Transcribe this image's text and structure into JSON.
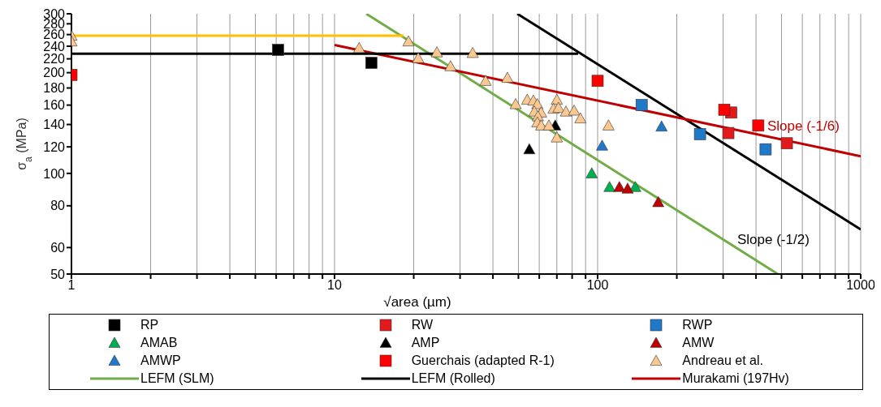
{
  "chart_data": {
    "type": "scatter",
    "xlabel": "√area (µm)",
    "ylabel": "σ$_{a}$ (MPa)",
    "log": "xy",
    "xlim": [
      1,
      1000
    ],
    "xticks": [
      1,
      {
        "value": 2,
        "label": null
      },
      {
        "value": 3,
        "label": null
      },
      {
        "value": 4,
        "label": null
      },
      {
        "value": 5,
        "label": null
      },
      {
        "value": 6,
        "label": null
      },
      {
        "value": 7,
        "label": null
      },
      {
        "value": 8,
        "label": null
      },
      {
        "value": 9,
        "label": null
      },
      10,
      {
        "value": 20,
        "label": null
      },
      {
        "value": 30,
        "label": null
      },
      {
        "value": 40,
        "label": null
      },
      {
        "value": 50,
        "label": null
      },
      {
        "value": 60,
        "label": null
      },
      {
        "value": 70,
        "label": null
      },
      {
        "value": 80,
        "label": null
      },
      {
        "value": 90,
        "label": null
      },
      100,
      {
        "value": 200,
        "label": null
      },
      {
        "value": 300,
        "label": null
      },
      {
        "value": 400,
        "label": null
      },
      {
        "value": 500,
        "label": null
      },
      {
        "value": 600,
        "label": null
      },
      {
        "value": 700,
        "label": null
      },
      {
        "value": 800,
        "label": null
      },
      {
        "value": 900,
        "label": null
      },
      1000
    ],
    "ylim": [
      50,
      300
    ],
    "yticks": [
      50,
      60,
      80,
      100,
      120,
      140,
      160,
      180,
      200,
      220,
      240,
      260,
      280,
      300
    ],
    "grid": "x",
    "legend": "bottom",
    "annotations": [
      "Slope (-1/6)",
      "Slope (-1/2)"
    ],
    "series": [
      {
        "name": "RP",
        "marker": "square",
        "color": "#000000",
        "x": [
          6.1,
          13.8
        ],
        "values": [
          234,
          214
        ]
      },
      {
        "name": "RW",
        "marker": "square",
        "color": "#e31a1c",
        "x": [
          322,
          314,
          524
        ],
        "values": [
          152,
          132,
          123
        ]
      },
      {
        "name": "RWP",
        "marker": "square",
        "color": "#1f78c8",
        "x": [
          147,
          245,
          435
        ],
        "values": [
          160,
          131,
          118
        ]
      },
      {
        "name": "AMAB",
        "marker": "triangle",
        "color": "#00b050",
        "x": [
          95,
          111,
          139
        ],
        "values": [
          100,
          91,
          91
        ]
      },
      {
        "name": "AMP",
        "marker": "triangle",
        "color": "#000000",
        "x": [
          55,
          69
        ],
        "values": [
          118,
          139
        ]
      },
      {
        "name": "AMW",
        "marker": "triangle",
        "color": "#c00000",
        "x": [
          121,
          130,
          170
        ],
        "values": [
          91,
          90,
          82
        ]
      },
      {
        "name": "AMWP",
        "marker": "triangle",
        "color": "#1f78c8",
        "x": [
          104,
          175
        ],
        "values": [
          121,
          138
        ]
      },
      {
        "name": "Guerchais  (adapted R-1)",
        "marker": "square",
        "color": "#ff0000",
        "x": [
          1,
          100,
          303,
          408
        ],
        "values": [
          197,
          189,
          155,
          139
        ]
      },
      {
        "name": "Andreau et al.",
        "marker": "triangle",
        "color": "#fac890",
        "x": [
          1,
          1,
          12.4,
          19.1,
          20.8,
          24.5,
          33.5,
          27.6,
          37.5,
          45.4,
          48.8,
          54,
          57,
          59,
          57.5,
          61,
          59.3,
          59,
          61,
          65.3,
          70,
          68,
          71,
          75.8,
          81.4,
          86,
          70,
          110
        ],
        "values": [
          258,
          248,
          237,
          248,
          221,
          230,
          229,
          209,
          189,
          193,
          161,
          166,
          165,
          161,
          153,
          152,
          148,
          142,
          139,
          139,
          166,
          156,
          157,
          153,
          154,
          146,
          128,
          139
        ]
      },
      {
        "name": "LEFM (SLM)",
        "type": "line",
        "marker": "none",
        "color": "#70ad47",
        "x": [
          13.2,
          484
        ],
        "values": [
          300,
          50
        ]
      },
      {
        "name": "LEFM (Rolled)",
        "type": "line",
        "marker": "none",
        "color": "#000000",
        "x": [
          49.5,
          1000
        ],
        "values": [
          300,
          68
        ]
      },
      {
        "name": "Murakami (197Hv)",
        "type": "line",
        "marker": "none",
        "color": "#c00000",
        "x": [
          10,
          1000
        ],
        "values": [
          242,
          112.5
        ]
      },
      {
        "type": "line",
        "marker": "none",
        "color": "#ffc000",
        "x": [
          1,
          18.3
        ],
        "values": [
          258,
          258
        ]
      },
      {
        "type": "line",
        "marker": "none",
        "color": "#000000",
        "x": [
          1,
          84.3
        ],
        "values": [
          228,
          228
        ]
      }
    ]
  }
}
